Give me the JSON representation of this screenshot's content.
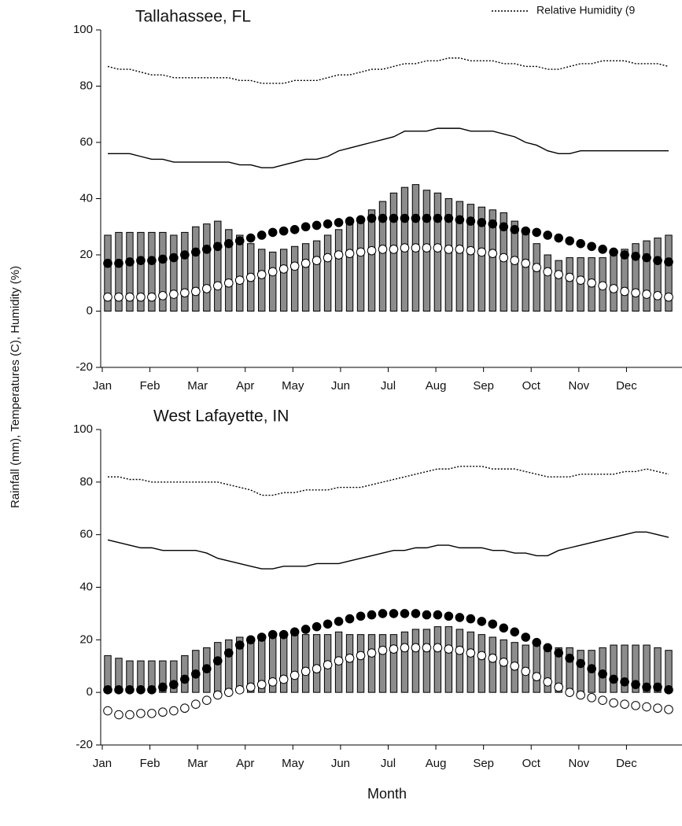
{
  "ylabel": "Rainfall (mm), Temperatures (C), Humidity (%)",
  "chart_data": [
    {
      "type": "combo",
      "title": "Tallahassee, FL",
      "xlim": [
        0,
        12
      ],
      "xticks": [
        {
          "value": 0,
          "label": "Jan"
        },
        {
          "value": 1,
          "label": "Feb"
        },
        {
          "value": 2,
          "label": "Mar"
        },
        {
          "value": 3,
          "label": "Apr"
        },
        {
          "value": 4,
          "label": "May"
        },
        {
          "value": 5,
          "label": "Jun"
        },
        {
          "value": 6,
          "label": "Jul"
        },
        {
          "value": 7,
          "label": "Aug"
        },
        {
          "value": 8,
          "label": "Sep"
        },
        {
          "value": 9,
          "label": "Oct"
        },
        {
          "value": 10,
          "label": "Nov"
        },
        {
          "value": 11,
          "label": "Dec"
        }
      ],
      "ylim": [
        -20,
        100
      ],
      "yticks": [
        -20,
        0,
        20,
        40,
        60,
        80,
        100
      ],
      "series": [
        {
          "type": "bar",
          "color": "#8c8c8c",
          "values": [
            27,
            28,
            28,
            28,
            28,
            28,
            27,
            28,
            30,
            31,
            32,
            29,
            27,
            24,
            22,
            21,
            22,
            23,
            24,
            25,
            27,
            29,
            31,
            33,
            36,
            39,
            42,
            44,
            45,
            43,
            42,
            40,
            39,
            38,
            37,
            36,
            35,
            32,
            28,
            24,
            20,
            18,
            19,
            19,
            19,
            19,
            21,
            22,
            24,
            25,
            26,
            27
          ]
        },
        {
          "type": "line",
          "style": "solid",
          "color": "#000000",
          "values": [
            56,
            56,
            56,
            55,
            54,
            54,
            53,
            53,
            53,
            53,
            53,
            53,
            52,
            52,
            51,
            51,
            52,
            53,
            54,
            54,
            55,
            57,
            58,
            59,
            60,
            61,
            62,
            64,
            64,
            64,
            65,
            65,
            65,
            64,
            64,
            64,
            63,
            62,
            60,
            59,
            57,
            56,
            56,
            57,
            57,
            57,
            57,
            57,
            57,
            57,
            57,
            57
          ]
        },
        {
          "type": "line",
          "style": "dotted",
          "name": "Relative Humidity (9",
          "color": "#000000",
          "values": [
            87,
            86,
            86,
            85,
            84,
            84,
            83,
            83,
            83,
            83,
            83,
            83,
            82,
            82,
            81,
            81,
            81,
            82,
            82,
            82,
            83,
            84,
            84,
            85,
            86,
            86,
            87,
            88,
            88,
            89,
            89,
            90,
            90,
            89,
            89,
            89,
            88,
            88,
            87,
            87,
            86,
            86,
            87,
            88,
            88,
            89,
            89,
            89,
            88,
            88,
            88,
            87
          ]
        },
        {
          "type": "scatter",
          "marker": "filled",
          "color": "#000000",
          "values": [
            17,
            17,
            17.5,
            18,
            18,
            18.5,
            19,
            20,
            21,
            22,
            23,
            24,
            25,
            26,
            27,
            28,
            28.5,
            29,
            30,
            30.5,
            31,
            31.5,
            32,
            32.5,
            33,
            33,
            33,
            33,
            33,
            33,
            33,
            33,
            32.5,
            32,
            31.5,
            31,
            30,
            29,
            28.5,
            28,
            27,
            26,
            25,
            24,
            23,
            22,
            21,
            20,
            19.5,
            19,
            18,
            17.5
          ]
        },
        {
          "type": "scatter",
          "marker": "open",
          "color": "#000000",
          "values": [
            5,
            5,
            5,
            5,
            5,
            5.5,
            6,
            6.5,
            7,
            8,
            9,
            10,
            11,
            12,
            13,
            14,
            15,
            16,
            17,
            18,
            19,
            20,
            20.5,
            21,
            21.5,
            22,
            22,
            22.5,
            22.5,
            22.5,
            22.5,
            22,
            22,
            21.5,
            21,
            20.5,
            19,
            18,
            17,
            15.5,
            14,
            13,
            12,
            11,
            10,
            9,
            8,
            7,
            6.5,
            6,
            5.5,
            5
          ]
        }
      ]
    },
    {
      "type": "combo",
      "title": "West Lafayette, IN",
      "xlabel": "Month",
      "xlim": [
        0,
        12
      ],
      "xticks": [
        {
          "value": 0,
          "label": "Jan"
        },
        {
          "value": 1,
          "label": "Feb"
        },
        {
          "value": 2,
          "label": "Mar"
        },
        {
          "value": 3,
          "label": "Apr"
        },
        {
          "value": 4,
          "label": "May"
        },
        {
          "value": 5,
          "label": "Jun"
        },
        {
          "value": 6,
          "label": "Jul"
        },
        {
          "value": 7,
          "label": "Aug"
        },
        {
          "value": 8,
          "label": "Sep"
        },
        {
          "value": 9,
          "label": "Oct"
        },
        {
          "value": 10,
          "label": "Nov"
        },
        {
          "value": 11,
          "label": "Dec"
        }
      ],
      "ylim": [
        -20,
        100
      ],
      "yticks": [
        -20,
        0,
        20,
        40,
        60,
        80,
        100
      ],
      "series": [
        {
          "type": "bar",
          "color": "#8c8c8c",
          "values": [
            14,
            13,
            12,
            12,
            12,
            12,
            12,
            14,
            16,
            17,
            19,
            20,
            21,
            21,
            21,
            22,
            22,
            22,
            22,
            22,
            22,
            23,
            22,
            22,
            22,
            22,
            22,
            23,
            24,
            24,
            25,
            25,
            24,
            23,
            22,
            21,
            20,
            19,
            18,
            18,
            17,
            17,
            17,
            16,
            16,
            17,
            18,
            18,
            18,
            18,
            17,
            16
          ]
        },
        {
          "type": "line",
          "style": "solid",
          "color": "#000000",
          "values": [
            58,
            57,
            56,
            55,
            55,
            54,
            54,
            54,
            54,
            53,
            51,
            50,
            49,
            48,
            47,
            47,
            48,
            48,
            48,
            49,
            49,
            49,
            50,
            51,
            52,
            53,
            54,
            54,
            55,
            55,
            56,
            56,
            55,
            55,
            55,
            54,
            54,
            53,
            53,
            52,
            52,
            54,
            55,
            56,
            57,
            58,
            59,
            60,
            61,
            61,
            60,
            59
          ]
        },
        {
          "type": "line",
          "style": "dotted",
          "color": "#000000",
          "values": [
            82,
            82,
            81,
            81,
            80,
            80,
            80,
            80,
            80,
            80,
            80,
            79,
            78,
            77,
            75,
            75,
            76,
            76,
            77,
            77,
            77,
            78,
            78,
            78,
            79,
            80,
            81,
            82,
            83,
            84,
            85,
            85,
            86,
            86,
            86,
            85,
            85,
            85,
            84,
            83,
            82,
            82,
            82,
            83,
            83,
            83,
            83,
            84,
            84,
            85,
            84,
            83
          ]
        },
        {
          "type": "scatter",
          "marker": "filled",
          "color": "#000000",
          "values": [
            1,
            1,
            1,
            1,
            1,
            2,
            3,
            5,
            7,
            9,
            12,
            15,
            18,
            20,
            21,
            22,
            22,
            23,
            24,
            25,
            26,
            27,
            28,
            29,
            29.5,
            30,
            30,
            30,
            30,
            29.5,
            29.5,
            29,
            28.5,
            28,
            27,
            26,
            24.5,
            23,
            21,
            19,
            17,
            15,
            13,
            11,
            9,
            7,
            5,
            4,
            3,
            2,
            2,
            1
          ]
        },
        {
          "type": "scatter",
          "marker": "open",
          "color": "#000000",
          "values": [
            -7,
            -8.5,
            -8.5,
            -8,
            -8,
            -7.5,
            -7,
            -6,
            -4.5,
            -3,
            -1,
            0,
            1,
            2,
            3,
            4,
            5,
            6.5,
            8,
            9,
            10.5,
            12,
            13,
            14,
            15,
            16,
            16.5,
            17,
            17,
            17,
            17,
            16.5,
            16,
            15,
            14,
            13,
            11.5,
            10,
            8,
            6,
            4,
            2,
            0,
            -1,
            -2,
            -3,
            -4,
            -4.5,
            -5,
            -5.5,
            -6,
            -6.5
          ]
        }
      ]
    }
  ]
}
